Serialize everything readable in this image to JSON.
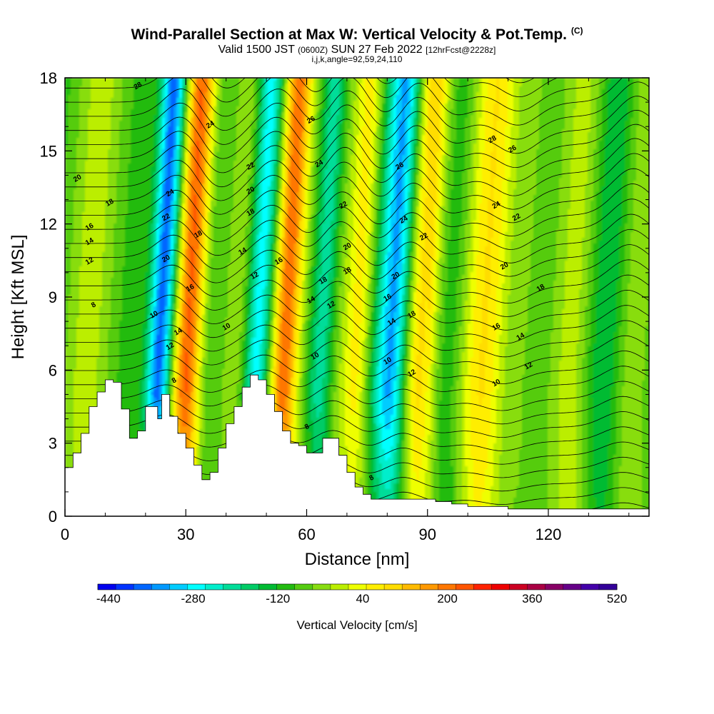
{
  "title": {
    "main": "Wind-Parallel Section at Max W: Vertical Velocity & Pot.Temp.",
    "copyright": "(C)",
    "valid_prefix": "Valid 1500 JST",
    "valid_z": "(0600Z)",
    "valid_date": "SUN 27 Feb 2022",
    "forecast": "[12hrFcst@2228z]",
    "params": "i,j,k,angle=92,59,24,110"
  },
  "chart_data": {
    "type": "heatmap",
    "xlabel": "Distance [nm]",
    "ylabel": "Height [Kft MSL]",
    "xlim": [
      0,
      145
    ],
    "ylim": [
      0,
      18
    ],
    "xticks": [
      0,
      30,
      60,
      90,
      120
    ],
    "yticks": [
      0,
      3,
      6,
      9,
      12,
      15,
      18
    ],
    "colorbar": {
      "label": "Vertical Velocity [cm/s]",
      "min": -460,
      "max": 520,
      "step": 40,
      "tick_values": [
        -440,
        -280,
        -120,
        40,
        200,
        360,
        520
      ],
      "tick_labels": [
        "-440",
        "-280",
        "-120",
        "40",
        "200",
        "360",
        "520"
      ],
      "colors": [
        "#0000ee",
        "#0033ff",
        "#0066ff",
        "#0099ff",
        "#00ccff",
        "#00ffff",
        "#00eecc",
        "#00dd99",
        "#00cc66",
        "#00bb33",
        "#22bb11",
        "#55cc11",
        "#88dd11",
        "#bbee00",
        "#eeff00",
        "#ffee00",
        "#ffdd00",
        "#ffbb00",
        "#ff9900",
        "#ff7700",
        "#ff5500",
        "#ff2200",
        "#ee0000",
        "#cc0022",
        "#aa0044",
        "#880066",
        "#660088",
        "#4400aa",
        "#330099"
      ]
    },
    "updrafts_nm": [
      30,
      54,
      72,
      87,
      105
    ],
    "downdrafts_nm": [
      23,
      47,
      63,
      81,
      135
    ],
    "terrain": {
      "x": [
        0,
        2,
        4,
        6,
        8,
        10,
        12,
        14,
        16,
        18,
        20,
        22,
        23,
        24,
        26,
        28,
        30,
        32,
        34,
        36,
        38,
        40,
        42,
        44,
        46,
        48,
        50,
        52,
        54,
        56,
        58,
        60,
        62,
        64,
        66,
        68,
        70,
        72,
        74,
        76,
        80,
        84,
        88,
        92,
        96,
        100,
        110,
        120,
        130,
        145
      ],
      "h": [
        2.0,
        2.6,
        3.4,
        4.5,
        5.1,
        5.6,
        5.5,
        4.4,
        3.2,
        3.5,
        4.5,
        4.5,
        4.0,
        5.0,
        4.1,
        3.4,
        2.8,
        2.1,
        1.5,
        1.8,
        2.8,
        3.8,
        4.5,
        5.3,
        5.8,
        5.6,
        5.0,
        4.3,
        3.5,
        3.0,
        2.9,
        2.6,
        2.6,
        3.2,
        3.2,
        2.5,
        1.8,
        1.2,
        0.9,
        0.7,
        0.7,
        0.7,
        0.7,
        0.6,
        0.5,
        0.4,
        0.3,
        0.3,
        0.3,
        0.3
      ]
    },
    "theta_contour_labels": [
      {
        "text": "8",
        "x": 7,
        "y": 8.7
      },
      {
        "text": "12",
        "x": 6,
        "y": 10.5
      },
      {
        "text": "14",
        "x": 6,
        "y": 11.3
      },
      {
        "text": "16",
        "x": 6,
        "y": 11.9
      },
      {
        "text": "18",
        "x": 11,
        "y": 12.9
      },
      {
        "text": "20",
        "x": 3,
        "y": 13.9
      },
      {
        "text": "28",
        "x": 18,
        "y": 17.7
      },
      {
        "text": "24",
        "x": 26,
        "y": 13.3
      },
      {
        "text": "22",
        "x": 25,
        "y": 12.3
      },
      {
        "text": "20",
        "x": 25,
        "y": 10.6
      },
      {
        "text": "10",
        "x": 22,
        "y": 8.3
      },
      {
        "text": "14",
        "x": 28,
        "y": 7.6
      },
      {
        "text": "12",
        "x": 26,
        "y": 7.0
      },
      {
        "text": "8",
        "x": 27,
        "y": 5.6
      },
      {
        "text": "24",
        "x": 36,
        "y": 16.1
      },
      {
        "text": "18",
        "x": 33,
        "y": 11.6
      },
      {
        "text": "16",
        "x": 31,
        "y": 9.4
      },
      {
        "text": "10",
        "x": 40,
        "y": 7.8
      },
      {
        "text": "22",
        "x": 46,
        "y": 14.4
      },
      {
        "text": "20",
        "x": 46,
        "y": 13.4
      },
      {
        "text": "18",
        "x": 46,
        "y": 12.5
      },
      {
        "text": "14",
        "x": 44,
        "y": 10.9
      },
      {
        "text": "12",
        "x": 47,
        "y": 9.9
      },
      {
        "text": "16",
        "x": 53,
        "y": 10.5
      },
      {
        "text": "26",
        "x": 61,
        "y": 16.3
      },
      {
        "text": "24",
        "x": 63,
        "y": 14.5
      },
      {
        "text": "22",
        "x": 69,
        "y": 12.8
      },
      {
        "text": "18",
        "x": 64,
        "y": 9.7
      },
      {
        "text": "14",
        "x": 61,
        "y": 8.9
      },
      {
        "text": "12",
        "x": 66,
        "y": 8.7
      },
      {
        "text": "10",
        "x": 62,
        "y": 6.6
      },
      {
        "text": "8",
        "x": 60,
        "y": 3.7
      },
      {
        "text": "20",
        "x": 70,
        "y": 11.1
      },
      {
        "text": "18",
        "x": 70,
        "y": 10.1
      },
      {
        "text": "26",
        "x": 83,
        "y": 14.4
      },
      {
        "text": "24",
        "x": 84,
        "y": 12.2
      },
      {
        "text": "22",
        "x": 89,
        "y": 11.5
      },
      {
        "text": "20",
        "x": 82,
        "y": 9.9
      },
      {
        "text": "16",
        "x": 80,
        "y": 9.0
      },
      {
        "text": "14",
        "x": 81,
        "y": 8.0
      },
      {
        "text": "18",
        "x": 86,
        "y": 8.3
      },
      {
        "text": "12",
        "x": 86,
        "y": 5.9
      },
      {
        "text": "10",
        "x": 80,
        "y": 6.4
      },
      {
        "text": "8",
        "x": 76,
        "y": 1.6
      },
      {
        "text": "28",
        "x": 106,
        "y": 15.5
      },
      {
        "text": "26",
        "x": 111,
        "y": 15.1
      },
      {
        "text": "24",
        "x": 107,
        "y": 12.8
      },
      {
        "text": "22",
        "x": 112,
        "y": 12.3
      },
      {
        "text": "20",
        "x": 109,
        "y": 10.3
      },
      {
        "text": "18",
        "x": 118,
        "y": 9.4
      },
      {
        "text": "16",
        "x": 107,
        "y": 7.8
      },
      {
        "text": "14",
        "x": 113,
        "y": 7.4
      },
      {
        "text": "12",
        "x": 115,
        "y": 6.2
      },
      {
        "text": "10",
        "x": 107,
        "y": 5.5
      }
    ]
  }
}
